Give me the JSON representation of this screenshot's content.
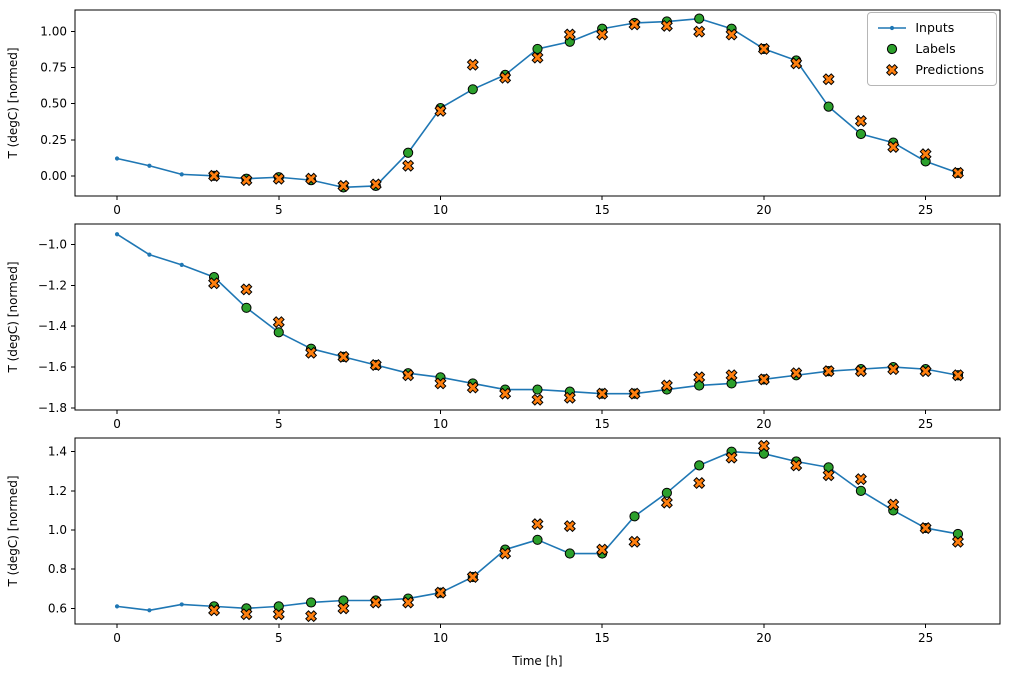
{
  "figure": {
    "background": "#ffffff",
    "xlabel": "Time [h]",
    "ylabel": "T (degC) [normed]",
    "legend": {
      "position": "upper right",
      "items": [
        {
          "label": "Inputs",
          "marker": "line-dot",
          "color": "#1f77b4"
        },
        {
          "label": "Labels",
          "marker": "circle",
          "color": "#2ca02c",
          "edge_color": "#000000"
        },
        {
          "label": "Predictions",
          "marker": "X",
          "color": "#ff7f0e",
          "edge_color": "#000000"
        }
      ]
    }
  },
  "chart_data": [
    {
      "type": "line",
      "ylabel": "T (degC) [normed]",
      "xlabel": "",
      "xlim": [
        -1.3,
        27.3
      ],
      "ylim": [
        -0.14,
        1.15
      ],
      "xticks": [
        0,
        5,
        10,
        15,
        20,
        25
      ],
      "yticks": [
        0.0,
        0.25,
        0.5,
        0.75,
        1.0
      ],
      "ytick_labels": [
        "0.00",
        "0.25",
        "0.50",
        "0.75",
        "1.00"
      ],
      "grid": false,
      "series": [
        {
          "name": "Inputs",
          "marker": "line-dot",
          "color": "#1f77b4",
          "x": [
            0,
            1,
            2,
            3,
            4,
            5,
            6,
            7,
            8,
            9,
            10,
            11,
            12,
            13,
            14,
            15,
            16,
            17,
            18,
            19,
            20,
            21,
            22,
            23,
            24,
            25,
            26
          ],
          "y": [
            0.12,
            0.07,
            0.01,
            0.0,
            -0.02,
            -0.01,
            -0.03,
            -0.08,
            -0.07,
            0.16,
            0.47,
            0.6,
            0.7,
            0.88,
            0.93,
            1.02,
            1.06,
            1.07,
            1.09,
            1.02,
            0.88,
            0.8,
            0.48,
            0.29,
            0.23,
            0.1,
            0.02
          ]
        },
        {
          "name": "Labels",
          "marker": "circle",
          "color": "#2ca02c",
          "edge_color": "#000000",
          "x": [
            3,
            4,
            5,
            6,
            7,
            8,
            9,
            10,
            11,
            12,
            13,
            14,
            15,
            16,
            17,
            18,
            19,
            20,
            21,
            22,
            23,
            24,
            25,
            26
          ],
          "y": [
            0.0,
            -0.02,
            -0.01,
            -0.03,
            -0.08,
            -0.07,
            0.16,
            0.47,
            0.6,
            0.7,
            0.88,
            0.93,
            1.02,
            1.06,
            1.07,
            1.09,
            1.02,
            0.88,
            0.8,
            0.48,
            0.29,
            0.23,
            0.1,
            0.02
          ]
        },
        {
          "name": "Predictions",
          "marker": "X",
          "color": "#ff7f0e",
          "edge_color": "#000000",
          "x": [
            3,
            4,
            5,
            6,
            7,
            8,
            9,
            10,
            11,
            12,
            13,
            14,
            15,
            16,
            17,
            18,
            19,
            20,
            21,
            22,
            23,
            24,
            25,
            26
          ],
          "y": [
            0.0,
            -0.03,
            -0.02,
            -0.02,
            -0.07,
            -0.06,
            0.07,
            0.45,
            0.77,
            0.68,
            0.82,
            0.98,
            0.98,
            1.05,
            1.04,
            1.0,
            0.98,
            0.88,
            0.78,
            0.67,
            0.38,
            0.2,
            0.15,
            0.02
          ]
        }
      ]
    },
    {
      "type": "line",
      "ylabel": "T (degC) [normed]",
      "xlabel": "",
      "xlim": [
        -1.3,
        27.3
      ],
      "ylim": [
        -1.81,
        -0.9
      ],
      "xticks": [
        0,
        5,
        10,
        15,
        20,
        25
      ],
      "yticks": [
        -1.0,
        -1.2,
        -1.4,
        -1.6,
        -1.8
      ],
      "ytick_labels": [
        "−1.0",
        "−1.2",
        "−1.4",
        "−1.6",
        "−1.8"
      ],
      "grid": false,
      "series": [
        {
          "name": "Inputs",
          "marker": "line-dot",
          "color": "#1f77b4",
          "x": [
            0,
            1,
            2,
            3,
            4,
            5,
            6,
            7,
            8,
            9,
            10,
            11,
            12,
            13,
            14,
            15,
            16,
            17,
            18,
            19,
            20,
            21,
            22,
            23,
            24,
            25,
            26
          ],
          "y": [
            -0.95,
            -1.05,
            -1.1,
            -1.16,
            -1.31,
            -1.43,
            -1.51,
            -1.55,
            -1.59,
            -1.63,
            -1.65,
            -1.68,
            -1.71,
            -1.71,
            -1.72,
            -1.73,
            -1.73,
            -1.71,
            -1.69,
            -1.68,
            -1.66,
            -1.64,
            -1.62,
            -1.61,
            -1.6,
            -1.61,
            -1.64
          ]
        },
        {
          "name": "Labels",
          "marker": "circle",
          "color": "#2ca02c",
          "edge_color": "#000000",
          "x": [
            3,
            4,
            5,
            6,
            7,
            8,
            9,
            10,
            11,
            12,
            13,
            14,
            15,
            16,
            17,
            18,
            19,
            20,
            21,
            22,
            23,
            24,
            25,
            26
          ],
          "y": [
            -1.16,
            -1.31,
            -1.43,
            -1.51,
            -1.55,
            -1.59,
            -1.63,
            -1.65,
            -1.68,
            -1.71,
            -1.71,
            -1.72,
            -1.73,
            -1.73,
            -1.71,
            -1.69,
            -1.68,
            -1.66,
            -1.64,
            -1.62,
            -1.61,
            -1.6,
            -1.61,
            -1.64
          ]
        },
        {
          "name": "Predictions",
          "marker": "X",
          "color": "#ff7f0e",
          "edge_color": "#000000",
          "x": [
            3,
            4,
            5,
            6,
            7,
            8,
            9,
            10,
            11,
            12,
            13,
            14,
            15,
            16,
            17,
            18,
            19,
            20,
            21,
            22,
            23,
            24,
            25,
            26
          ],
          "y": [
            -1.19,
            -1.22,
            -1.38,
            -1.53,
            -1.55,
            -1.59,
            -1.64,
            -1.68,
            -1.7,
            -1.73,
            -1.76,
            -1.75,
            -1.73,
            -1.73,
            -1.69,
            -1.65,
            -1.64,
            -1.66,
            -1.63,
            -1.62,
            -1.62,
            -1.61,
            -1.62,
            -1.64
          ]
        }
      ]
    },
    {
      "type": "line",
      "ylabel": "T (degC) [normed]",
      "xlabel": "Time [h]",
      "xlim": [
        -1.3,
        27.3
      ],
      "ylim": [
        0.52,
        1.47
      ],
      "xticks": [
        0,
        5,
        10,
        15,
        20,
        25
      ],
      "yticks": [
        0.6,
        0.8,
        1.0,
        1.2,
        1.4
      ],
      "ytick_labels": [
        "0.6",
        "0.8",
        "1.0",
        "1.2",
        "1.4"
      ],
      "grid": false,
      "series": [
        {
          "name": "Inputs",
          "marker": "line-dot",
          "color": "#1f77b4",
          "x": [
            0,
            1,
            2,
            3,
            4,
            5,
            6,
            7,
            8,
            9,
            10,
            11,
            12,
            13,
            14,
            15,
            16,
            17,
            18,
            19,
            20,
            21,
            22,
            23,
            24,
            25,
            26
          ],
          "y": [
            0.61,
            0.59,
            0.62,
            0.61,
            0.6,
            0.61,
            0.63,
            0.64,
            0.64,
            0.65,
            0.68,
            0.76,
            0.9,
            0.95,
            0.88,
            0.88,
            1.07,
            1.19,
            1.33,
            1.4,
            1.39,
            1.35,
            1.32,
            1.2,
            1.1,
            1.01,
            0.98
          ]
        },
        {
          "name": "Labels",
          "marker": "circle",
          "color": "#2ca02c",
          "edge_color": "#000000",
          "x": [
            3,
            4,
            5,
            6,
            7,
            8,
            9,
            10,
            11,
            12,
            13,
            14,
            15,
            16,
            17,
            18,
            19,
            20,
            21,
            22,
            23,
            24,
            25,
            26
          ],
          "y": [
            0.61,
            0.6,
            0.61,
            0.63,
            0.64,
            0.64,
            0.65,
            0.68,
            0.76,
            0.9,
            0.95,
            0.88,
            0.88,
            1.07,
            1.19,
            1.33,
            1.4,
            1.39,
            1.35,
            1.32,
            1.2,
            1.1,
            1.01,
            0.98
          ]
        },
        {
          "name": "Predictions",
          "marker": "X",
          "color": "#ff7f0e",
          "edge_color": "#000000",
          "x": [
            3,
            4,
            5,
            6,
            7,
            8,
            9,
            10,
            11,
            12,
            13,
            14,
            15,
            16,
            17,
            18,
            19,
            20,
            21,
            22,
            23,
            24,
            25,
            26
          ],
          "y": [
            0.59,
            0.57,
            0.57,
            0.56,
            0.6,
            0.63,
            0.63,
            0.68,
            0.76,
            0.88,
            1.03,
            1.02,
            0.9,
            0.94,
            1.14,
            1.24,
            1.37,
            1.43,
            1.33,
            1.28,
            1.26,
            1.13,
            1.01,
            0.94
          ]
        }
      ]
    }
  ]
}
